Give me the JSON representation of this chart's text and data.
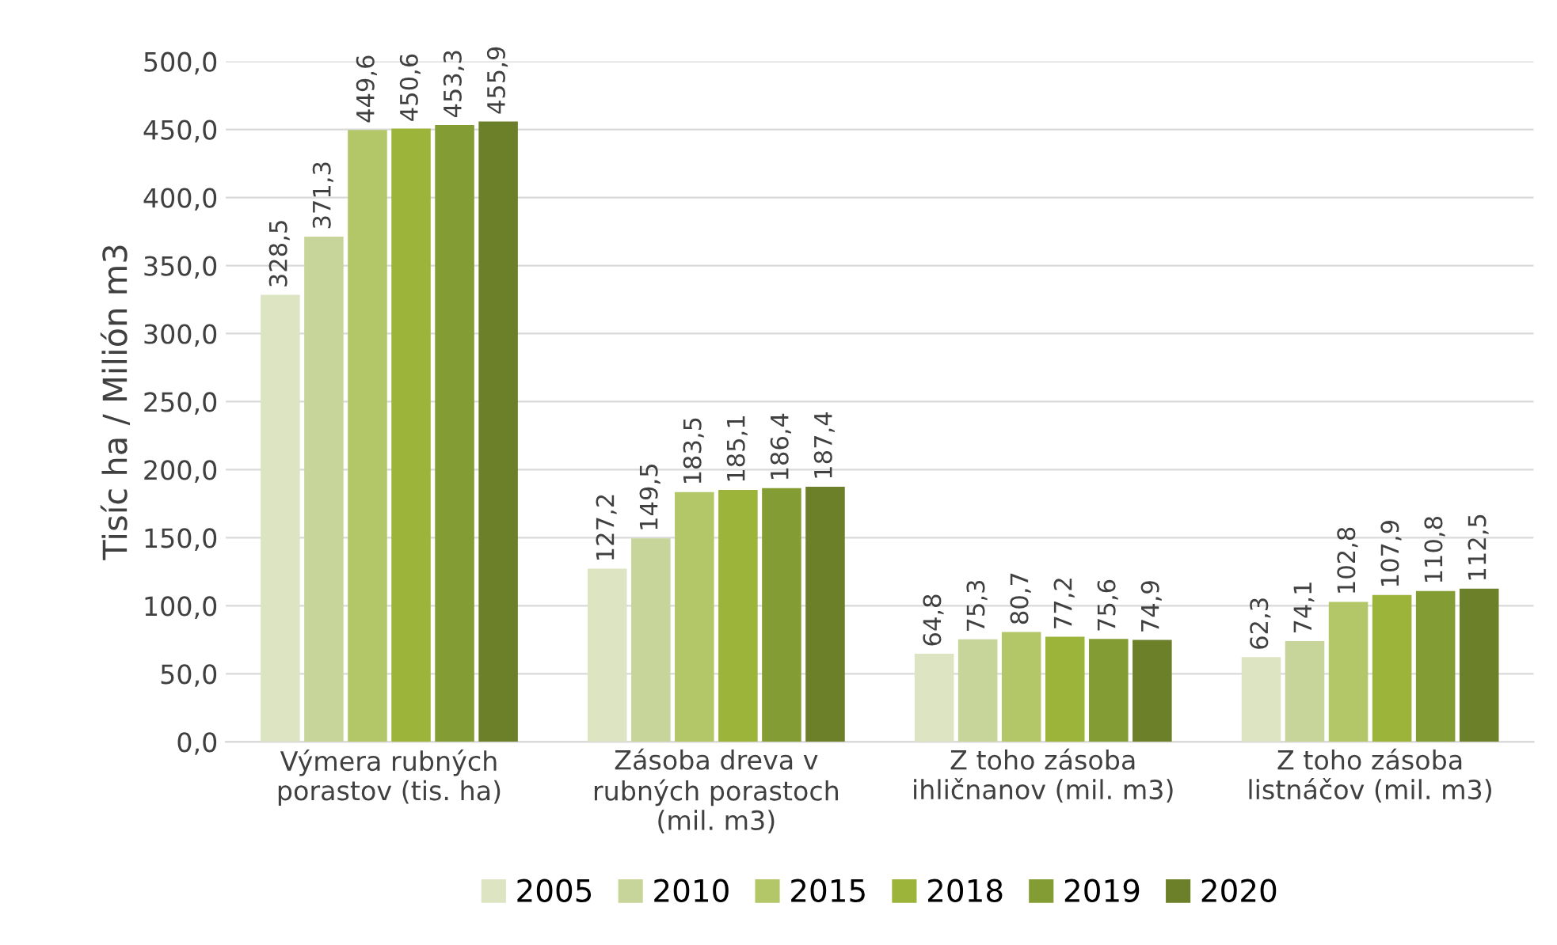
{
  "chart_data": {
    "type": "bar",
    "ylabel": "Tisíc ha / Milión m3",
    "categories": [
      "Výmera rubných\nporastov (tis. ha)",
      "Zásoba dreva v\nrubných porastoch\n(mil. m3)",
      "Z toho zásoba\nihličnanov (mil. m3)",
      "Z toho zásoba\nlistnáčov (mil. m3)"
    ],
    "series": [
      {
        "name": "2005",
        "color": "#dce4c2",
        "values": [
          328.5,
          127.2,
          64.8,
          62.3
        ],
        "value_labels": [
          "328,5",
          "127,2",
          "64,8",
          "62,3"
        ]
      },
      {
        "name": "2010",
        "color": "#c8d59a",
        "values": [
          371.3,
          149.5,
          75.3,
          74.1
        ],
        "value_labels": [
          "371,3",
          "149,5",
          "75,3",
          "74,1"
        ]
      },
      {
        "name": "2015",
        "color": "#b3c768",
        "values": [
          449.6,
          183.5,
          80.7,
          102.8
        ],
        "value_labels": [
          "449,6",
          "183,5",
          "80,7",
          "102,8"
        ]
      },
      {
        "name": "2018",
        "color": "#9db43a",
        "values": [
          450.6,
          185.1,
          77.2,
          107.9
        ],
        "value_labels": [
          "450,6",
          "185,1",
          "77,2",
          "107,9"
        ]
      },
      {
        "name": "2019",
        "color": "#839c33",
        "values": [
          453.3,
          186.4,
          75.6,
          110.8
        ],
        "value_labels": [
          "453,3",
          "186,4",
          "75,6",
          "110,8"
        ]
      },
      {
        "name": "2020",
        "color": "#6c8029",
        "values": [
          455.9,
          187.4,
          74.9,
          112.5
        ],
        "value_labels": [
          "455,9",
          "187,4",
          "74,9",
          "112,5"
        ]
      }
    ],
    "ylim": [
      0,
      500
    ],
    "yticks": [
      {
        "value": 0,
        "label": "0,0"
      },
      {
        "value": 50,
        "label": "50,0"
      },
      {
        "value": 100,
        "label": "100,0"
      },
      {
        "value": 150,
        "label": "150,0"
      },
      {
        "value": 200,
        "label": "200,0"
      },
      {
        "value": 250,
        "label": "250,0"
      },
      {
        "value": 300,
        "label": "300,0"
      },
      {
        "value": 350,
        "label": "350,0"
      },
      {
        "value": 400,
        "label": "400,0"
      },
      {
        "value": 450,
        "label": "450,0"
      },
      {
        "value": 500,
        "label": "500,0"
      }
    ],
    "grid": "y",
    "legend": "bottom"
  }
}
